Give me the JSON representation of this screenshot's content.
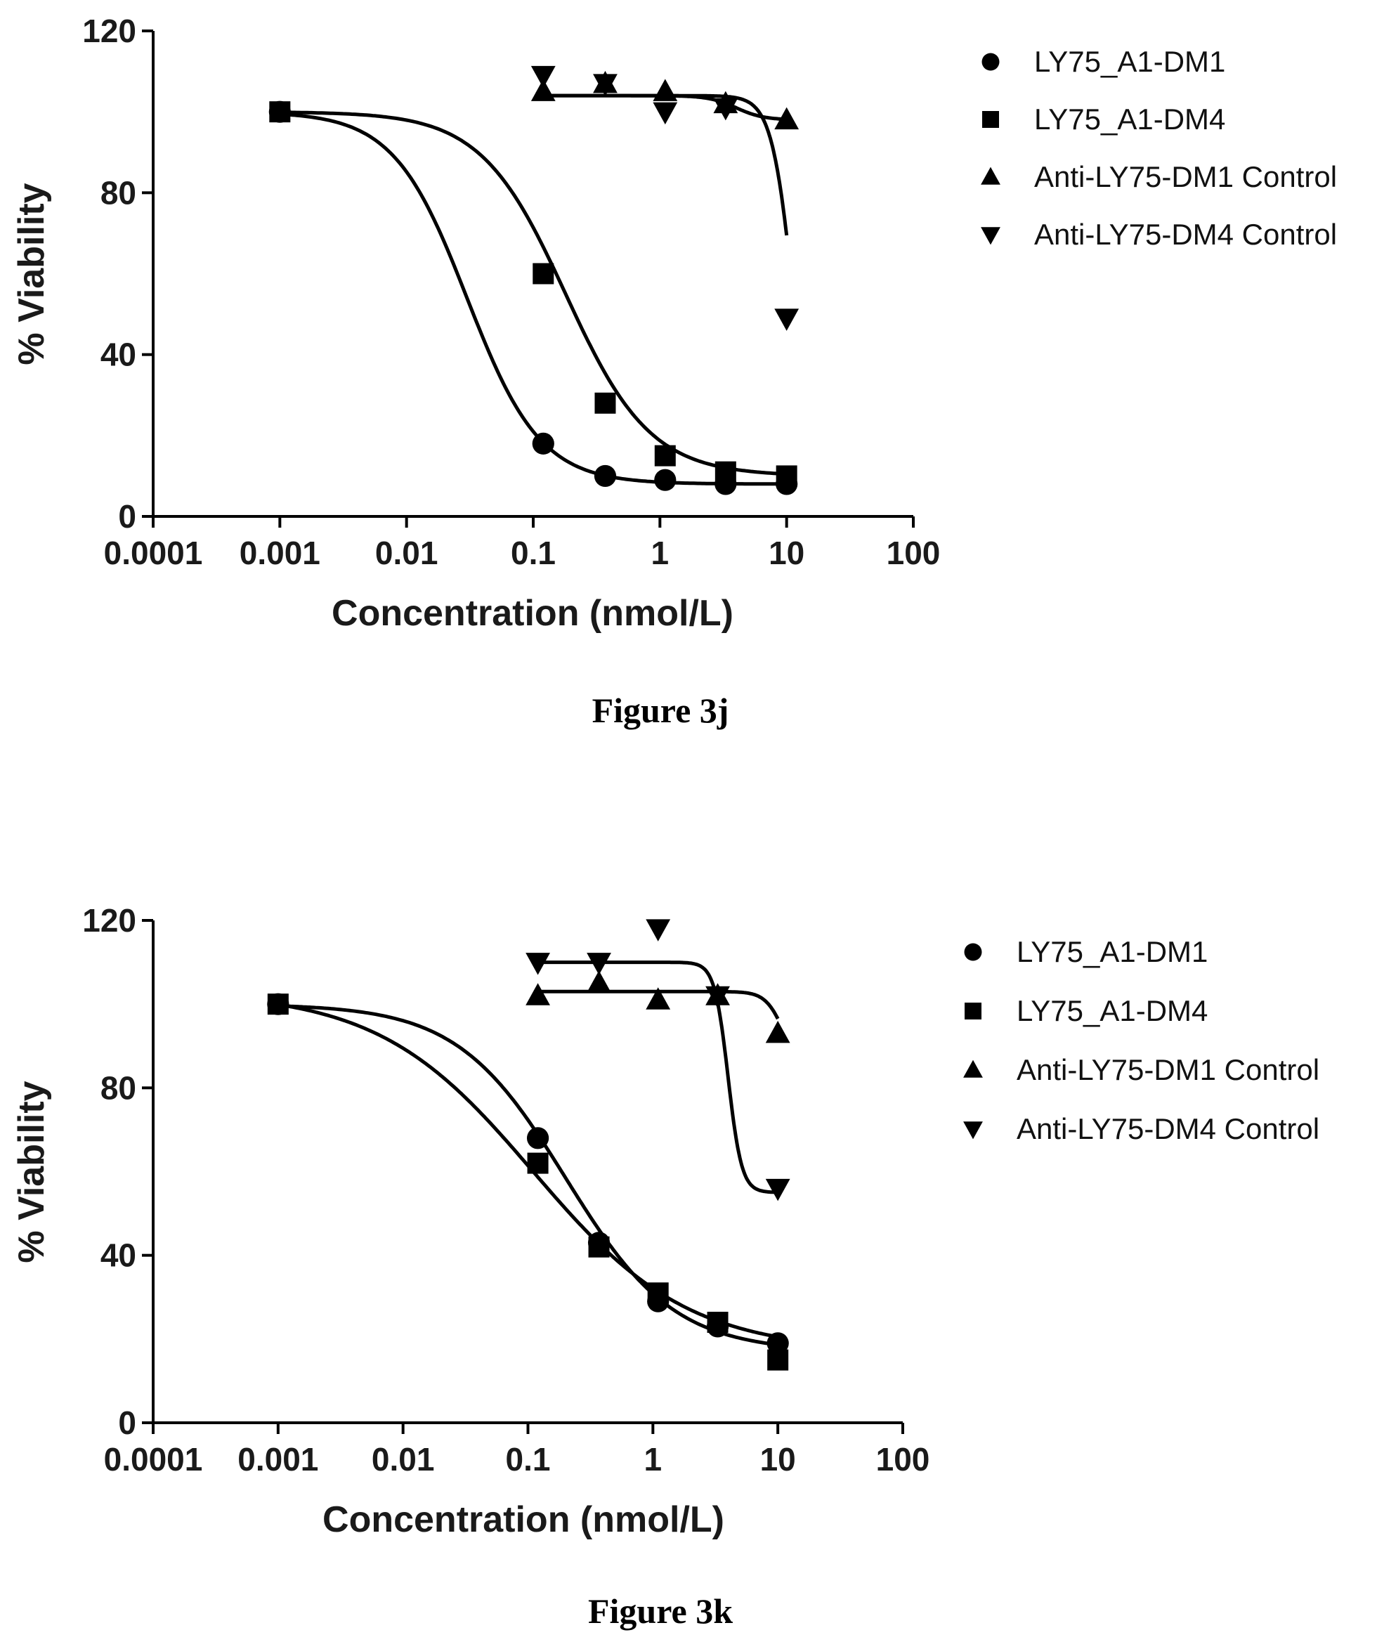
{
  "chart_data": [
    {
      "type": "scatter",
      "caption": "Figure 3j",
      "xlabel": "Concentration (nmol/L)",
      "ylabel": "% Viability",
      "xscale": "log",
      "xlim": [
        0.0001,
        100
      ],
      "ylim": [
        0,
        120
      ],
      "xticks": [
        "0.0001",
        "0.001",
        "0.01",
        "0.1",
        "1",
        "10",
        "100"
      ],
      "yticks": [
        "0",
        "40",
        "80",
        "120"
      ],
      "grid": false,
      "legend_position": "right",
      "series": [
        {
          "name": "LY75_A1-DM1",
          "marker": "circle",
          "x": [
            0.001,
            0.12,
            0.37,
            1.1,
            3.3,
            10
          ],
          "y": [
            100,
            18,
            10,
            9,
            8,
            8
          ],
          "fit": {
            "top": 100,
            "bottom": 8,
            "ec50": 0.03,
            "hill": 1.5
          }
        },
        {
          "name": "LY75_A1-DM4",
          "marker": "square",
          "x": [
            0.001,
            0.12,
            0.37,
            1.1,
            3.3,
            10
          ],
          "y": [
            100,
            60,
            28,
            15,
            11,
            10
          ],
          "fit": {
            "top": 100,
            "bottom": 10,
            "ec50": 0.18,
            "hill": 1.3
          }
        },
        {
          "name": "Anti-LY75-DM1 Control",
          "marker": "triangle-up",
          "x": [
            0.12,
            0.37,
            1.1,
            3.3,
            10
          ],
          "y": [
            105,
            107,
            105,
            102,
            98
          ],
          "fit": {
            "top": 104,
            "bottom": 98,
            "ec50": 4,
            "hill": 4
          }
        },
        {
          "name": "Anti-LY75-DM4 Control",
          "marker": "triangle-down",
          "x": [
            0.12,
            0.37,
            1.1,
            3.3,
            10
          ],
          "y": [
            109,
            107,
            100,
            101,
            49
          ],
          "fit": {
            "top": 104,
            "bottom": 0,
            "ec50": 11.5,
            "hill": 5
          }
        }
      ]
    },
    {
      "type": "scatter",
      "caption": "Figure 3k",
      "xlabel": "Concentration (nmol/L)",
      "ylabel": "% Viability",
      "xscale": "log",
      "xlim": [
        0.0001,
        100
      ],
      "ylim": [
        0,
        120
      ],
      "xticks": [
        "0.0001",
        "0.001",
        "0.01",
        "0.1",
        "1",
        "10",
        "100"
      ],
      "yticks": [
        "0",
        "40",
        "80",
        "120"
      ],
      "grid": false,
      "legend_position": "right",
      "series": [
        {
          "name": "LY75_A1-DM1",
          "marker": "circle",
          "x": [
            0.001,
            0.12,
            0.37,
            1.1,
            3.3,
            10
          ],
          "y": [
            100,
            68,
            43,
            29,
            23,
            19
          ],
          "fit": {
            "top": 100,
            "bottom": 17,
            "ec50": 0.2,
            "hill": 1.0
          }
        },
        {
          "name": "LY75_A1-DM4",
          "marker": "square",
          "x": [
            0.001,
            0.12,
            0.37,
            1.1,
            3.3,
            10
          ],
          "y": [
            100,
            62,
            42,
            31,
            24,
            15
          ],
          "fit": {
            "top": 103,
            "bottom": 17,
            "ec50": 0.11,
            "hill": 0.7
          }
        },
        {
          "name": "Anti-LY75-DM1 Control",
          "marker": "triangle-up",
          "x": [
            0.12,
            0.37,
            1.1,
            3.3,
            10
          ],
          "y": [
            102,
            105,
            101,
            102,
            93
          ],
          "fit": {
            "top": 103,
            "bottom": 85,
            "ec50": 11,
            "hill": 6
          }
        },
        {
          "name": "Anti-LY75-DM4 Control",
          "marker": "triangle-down",
          "x": [
            0.12,
            0.37,
            1.1,
            3.3,
            10
          ],
          "y": [
            110,
            110,
            118,
            102,
            56
          ],
          "fit": {
            "top": 110,
            "bottom": 55,
            "ec50": 4,
            "hill": 8
          }
        }
      ]
    }
  ]
}
